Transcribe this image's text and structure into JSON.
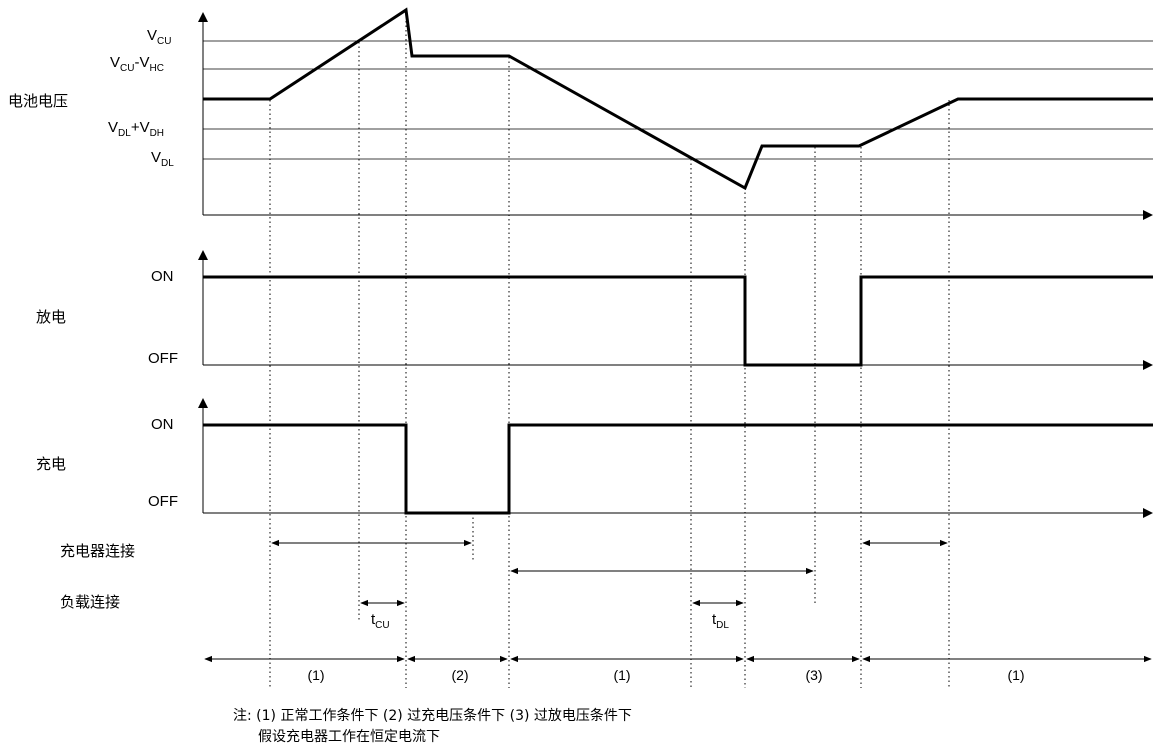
{
  "levels": {
    "vcu": {
      "main": "V",
      "sub": "CU"
    },
    "vcu_vhc": {
      "m1": "V",
      "s1": "CU",
      "mid": "-V",
      "s2": "HC"
    },
    "vdl_vdh": {
      "m1": "V",
      "s1": "DL",
      "mid": "+V",
      "s2": "DH"
    },
    "vdl": {
      "main": "V",
      "sub": "DL"
    }
  },
  "panels": {
    "battery": {
      "label": "电池电压"
    },
    "discharge": {
      "label": "放电",
      "on": "ON",
      "off": "OFF"
    },
    "charge": {
      "label": "充电",
      "on": "ON",
      "off": "OFF"
    }
  },
  "connections": {
    "charger": "充电器连接",
    "load": "负载连接"
  },
  "delays": {
    "tcu": {
      "main": "t",
      "sub": "CU"
    },
    "tdl": {
      "main": "t",
      "sub": "DL"
    }
  },
  "segments": [
    "(1)",
    "(2)",
    "(1)",
    "(3)",
    "(1)"
  ],
  "notes": {
    "line1": "注: (1) 正常工作条件下 (2) 过充电压条件下 (3) 过放电压条件下",
    "line2": "假设充电器工作在恒定电流下"
  }
}
